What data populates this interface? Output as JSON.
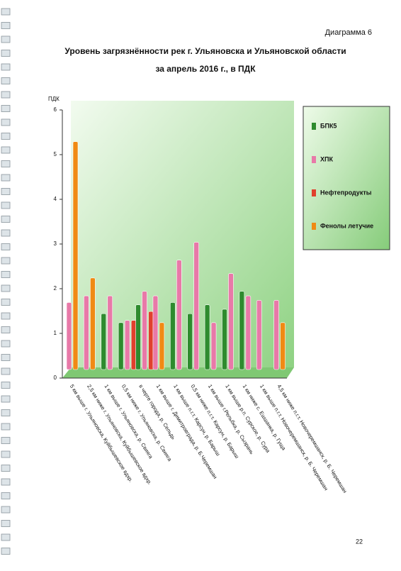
{
  "header": "Диаграмма 6",
  "page_number": "22",
  "chart_data": {
    "type": "bar",
    "title": "Уровень загрязнённости рек г. Ульяновска и Ульяновской области",
    "subtitle": "за апрель 2016 г., в ПДК",
    "y_label": "ПДК",
    "categories": [
      "5 км выше г. Ульяновска, Куйбышевское вдхр.",
      "2,5 км ниже г. Ульяновска, Куйбышевское вдхр.",
      "1 км выше г. Ульяновска, р. Свияга",
      "0,5 км ниже г. Ульяновска, р. Свияга",
      "в черте города, р. Сельдь",
      "1 км выше г. Димитровграда, р. Б.Черемшан",
      "1 км выше п.г.т. Карсун, р. Барыш",
      "0,5 км ниже п.г.т. Карсун, р. Барыш",
      "1 км выше г.Рельбка, р. Сызрань",
      "1 км выше р.п. Сурское, р. Сура",
      "1 км ниже с. Ешшанка, р. Гуща",
      "1 км выше п.г.т. Новочеремшанск, р. Б. Черемшан",
      "4,5 км ниже п.г.т. Новочеремшанск, р. Б. Черемшан"
    ],
    "series": [
      {
        "name": "БПК5",
        "color": "#2e8b2e",
        "values": [
          null,
          null,
          1.25,
          1.05,
          1.45,
          null,
          1.5,
          1.25,
          1.45,
          1.35,
          1.75,
          null,
          null
        ]
      },
      {
        "name": "ХПК",
        "color": "#e879a8",
        "values": [
          1.5,
          1.65,
          1.65,
          1.1,
          1.75,
          1.65,
          2.45,
          2.85,
          1.05,
          2.15,
          1.65,
          1.55,
          1.55
        ]
      },
      {
        "name": "Нефтепродукты",
        "color": "#e0402c",
        "values": [
          null,
          null,
          null,
          1.1,
          1.3,
          null,
          null,
          null,
          null,
          null,
          null,
          null,
          null
        ]
      },
      {
        "name": "Фенолы летучие",
        "color": "#f08a14",
        "values": [
          5.1,
          2.05,
          null,
          null,
          null,
          1.05,
          null,
          null,
          null,
          null,
          null,
          null,
          1.05
        ]
      }
    ],
    "ylim": [
      0,
      6
    ],
    "yticks": [
      0,
      1,
      2,
      3,
      4,
      5,
      6
    ],
    "legend": "right"
  }
}
